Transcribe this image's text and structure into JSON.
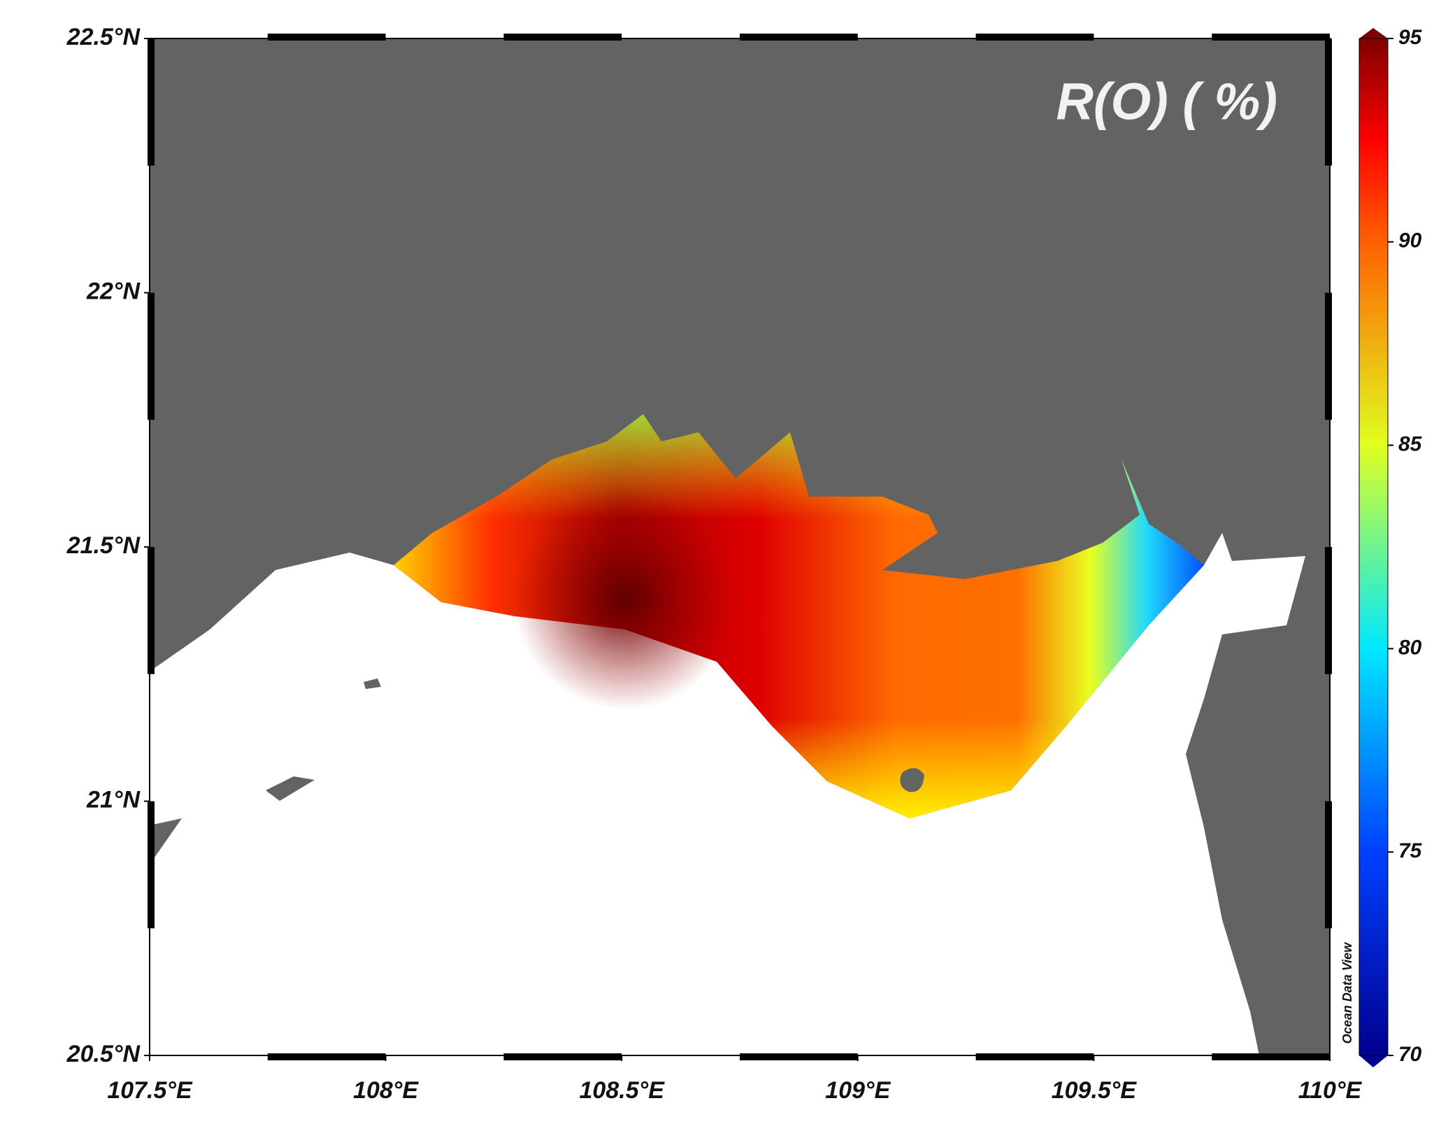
{
  "title": "R(O) ( %)",
  "lon_ticks": [
    {
      "value": 107.5,
      "label": "107.5°E"
    },
    {
      "value": 108,
      "label": "108°E"
    },
    {
      "value": 108.5,
      "label": "108.5°E"
    },
    {
      "value": 109,
      "label": "109°E"
    },
    {
      "value": 109.5,
      "label": "109.5°E"
    },
    {
      "value": 110,
      "label": "110°E"
    }
  ],
  "lat_ticks": [
    {
      "value": 20.5,
      "label": "20.5°N"
    },
    {
      "value": 21,
      "label": "21°N"
    },
    {
      "value": 21.5,
      "label": "21.5°N"
    },
    {
      "value": 22,
      "label": "22°N"
    },
    {
      "value": 22.5,
      "label": "22.5°N"
    }
  ],
  "colorbar": {
    "lim": [
      70,
      95
    ],
    "ticks": [
      70,
      75,
      80,
      85,
      90,
      95
    ]
  },
  "credit": "Ocean Data View"
}
